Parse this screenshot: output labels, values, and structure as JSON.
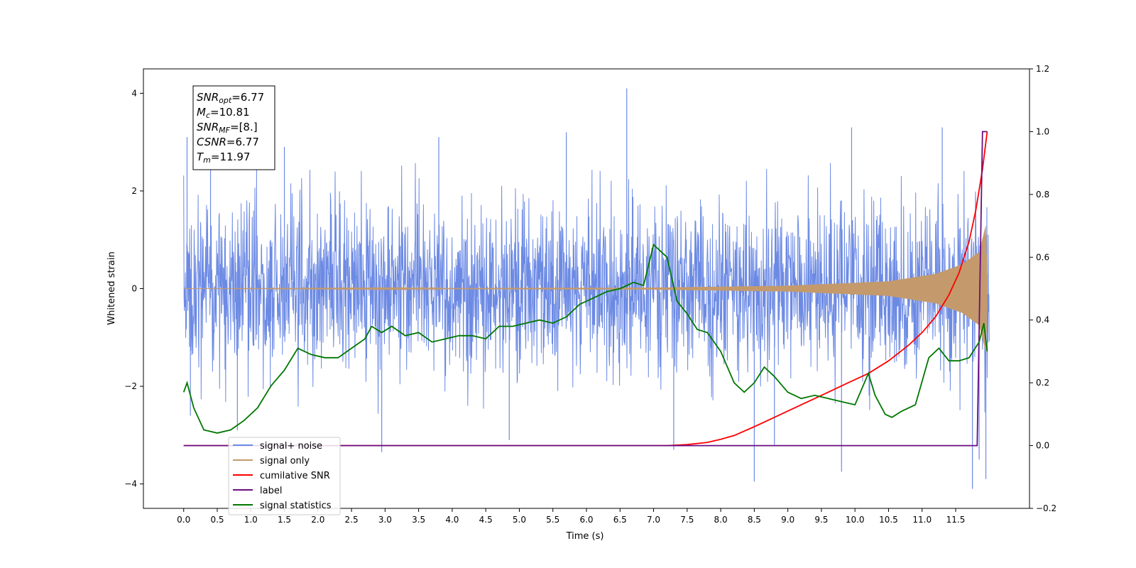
{
  "chart_data": {
    "type": "line",
    "xlabel": "Time (s)",
    "ylabel_left": "Whitened strain",
    "ylabel_right": "",
    "xlim": [
      -0.6,
      12.6
    ],
    "ylim_left": [
      -4.5,
      4.5
    ],
    "ylim_right": [
      -0.2,
      1.2
    ],
    "x_ticks": [
      0.0,
      0.5,
      1.0,
      1.5,
      2.0,
      2.5,
      3.0,
      3.5,
      4.0,
      4.5,
      5.0,
      5.5,
      6.0,
      6.5,
      7.0,
      7.5,
      8.0,
      8.5,
      9.0,
      9.5,
      10.0,
      10.5,
      11.0,
      11.5
    ],
    "x_tick_labels": [
      "0.0",
      "0.5",
      "1.0",
      "1.5",
      "2.0",
      "2.5",
      "3.0",
      "3.5",
      "4.0",
      "4.5",
      "5.0",
      "5.5",
      "6.0",
      "6.5",
      "7.0",
      "7.5",
      "8.0",
      "8.5",
      "9.0",
      "9.5",
      "10.0",
      "10.5",
      "11.0",
      "11.5"
    ],
    "y_ticks_left": [
      -4,
      -2,
      0,
      2,
      4
    ],
    "y_tick_labels_left": [
      "−4",
      "−2",
      "0",
      "2",
      "4"
    ],
    "y_ticks_right": [
      -0.2,
      0.0,
      0.2,
      0.4,
      0.6,
      0.8,
      1.0,
      1.2
    ],
    "y_tick_labels_right": [
      "−0.2",
      "0.0",
      "0.2",
      "0.4",
      "0.6",
      "0.8",
      "1.0",
      "1.2"
    ],
    "grid": false,
    "legend_placement": "lower-left",
    "annotation": {
      "lines": [
        {
          "main": "SNR",
          "sub": "opt",
          "value": "=6.77"
        },
        {
          "main": "M",
          "sub": "c",
          "value": "=10.81"
        },
        {
          "main": "SNR",
          "sub": "MF",
          "value": "=[8.]"
        },
        {
          "main": "CSNR",
          "sub": "",
          "value": "=6.77"
        },
        {
          "main": "T",
          "sub": "m",
          "value": "=11.97"
        }
      ]
    },
    "series": [
      {
        "name": "signal+ noise",
        "axis": "left",
        "color": "#6c8ae4",
        "style": "noise-envelope",
        "x_range": [
          0.0,
          12.0
        ],
        "typical_amplitude": 2.0,
        "peak_values": [
          [
            0.05,
            3.1
          ],
          [
            0.1,
            -2.6
          ],
          [
            0.4,
            2.9
          ],
          [
            0.8,
            -2.9
          ],
          [
            1.5,
            2.9
          ],
          [
            2.95,
            -3.35
          ],
          [
            3.8,
            3.1
          ],
          [
            4.85,
            -3.1
          ],
          [
            5.7,
            3.2
          ],
          [
            6.6,
            4.1
          ],
          [
            7.3,
            -3.3
          ],
          [
            8.5,
            -3.95
          ],
          [
            8.8,
            -3.2
          ],
          [
            9.8,
            -3.75
          ],
          [
            9.95,
            3.3
          ],
          [
            11.3,
            3.3
          ],
          [
            11.75,
            -4.1
          ],
          [
            11.85,
            -3.5
          ],
          [
            11.95,
            -3.9
          ]
        ]
      },
      {
        "name": "signal only",
        "axis": "left",
        "color": "#c49a6c",
        "style": "chirp",
        "x_range": [
          0.0,
          11.97
        ],
        "amplitude_points": [
          [
            0.0,
            0.0
          ],
          [
            7.0,
            0.02
          ],
          [
            9.0,
            0.06
          ],
          [
            10.5,
            0.15
          ],
          [
            11.2,
            0.3
          ],
          [
            11.6,
            0.5
          ],
          [
            11.85,
            0.75
          ],
          [
            11.95,
            1.3
          ],
          [
            11.97,
            0.3
          ]
        ]
      },
      {
        "name": "cumilative SNR",
        "axis": "right",
        "color": "#ff0000",
        "x": [
          0.0,
          7.2,
          7.5,
          7.8,
          8.0,
          8.2,
          8.5,
          8.8,
          9.0,
          9.3,
          9.6,
          9.9,
          10.2,
          10.5,
          10.8,
          11.0,
          11.2,
          11.4,
          11.55,
          11.7,
          11.8,
          11.9,
          11.97
        ],
        "y": [
          0.0,
          0.0,
          0.003,
          0.01,
          0.02,
          0.032,
          0.06,
          0.09,
          0.11,
          0.14,
          0.17,
          0.2,
          0.23,
          0.27,
          0.32,
          0.36,
          0.41,
          0.48,
          0.55,
          0.65,
          0.75,
          0.88,
          1.0
        ]
      },
      {
        "name": "label",
        "axis": "right",
        "color": "#6a0d83",
        "x": [
          0.0,
          11.82,
          11.9,
          11.97
        ],
        "y": [
          0.0,
          0.0,
          1.0,
          1.0
        ]
      },
      {
        "name": "signal statistics",
        "axis": "right",
        "color": "#007700",
        "x": [
          0.0,
          0.05,
          0.15,
          0.3,
          0.5,
          0.7,
          0.9,
          1.1,
          1.3,
          1.5,
          1.7,
          1.9,
          2.1,
          2.3,
          2.5,
          2.7,
          2.8,
          2.95,
          3.1,
          3.3,
          3.5,
          3.7,
          3.9,
          4.1,
          4.3,
          4.5,
          4.7,
          4.9,
          5.1,
          5.3,
          5.5,
          5.7,
          5.9,
          6.1,
          6.3,
          6.5,
          6.7,
          6.85,
          7.0,
          7.2,
          7.35,
          7.5,
          7.65,
          7.8,
          8.0,
          8.2,
          8.35,
          8.5,
          8.65,
          8.8,
          9.0,
          9.2,
          9.4,
          9.6,
          9.8,
          10.0,
          10.2,
          10.3,
          10.45,
          10.55,
          10.7,
          10.9,
          11.1,
          11.25,
          11.4,
          11.55,
          11.7,
          11.85,
          11.92,
          11.97
        ],
        "y": [
          0.17,
          0.2,
          0.12,
          0.05,
          0.04,
          0.05,
          0.08,
          0.12,
          0.19,
          0.24,
          0.31,
          0.29,
          0.28,
          0.28,
          0.31,
          0.34,
          0.38,
          0.36,
          0.38,
          0.35,
          0.36,
          0.33,
          0.34,
          0.35,
          0.35,
          0.34,
          0.38,
          0.38,
          0.39,
          0.4,
          0.39,
          0.41,
          0.45,
          0.47,
          0.49,
          0.5,
          0.52,
          0.51,
          0.64,
          0.6,
          0.46,
          0.42,
          0.37,
          0.36,
          0.3,
          0.2,
          0.17,
          0.2,
          0.25,
          0.22,
          0.17,
          0.15,
          0.16,
          0.15,
          0.14,
          0.13,
          0.23,
          0.16,
          0.1,
          0.09,
          0.11,
          0.13,
          0.28,
          0.31,
          0.27,
          0.27,
          0.28,
          0.33,
          0.39,
          0.3
        ]
      }
    ]
  }
}
